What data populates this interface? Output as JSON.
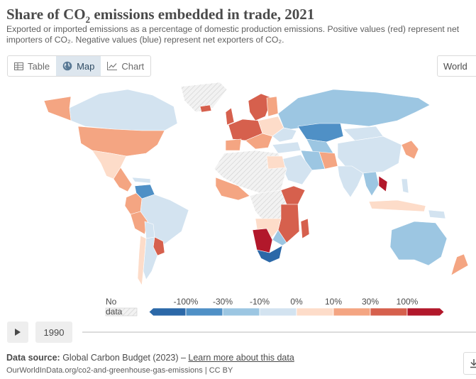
{
  "header": {
    "title_prefix": "Share of CO",
    "title_sub": "2",
    "title_suffix": " emissions embedded in trade, 2021",
    "subtitle": "Exported or imported emissions as a percentage of domestic production emissions. Positive values (red) represent net importers of CO₂. Negative values (blue) represent net exporters of CO₂."
  },
  "tabs": [
    {
      "label": "Table",
      "icon": "table-icon",
      "active": false
    },
    {
      "label": "Map",
      "icon": "globe-icon",
      "active": true
    },
    {
      "label": "Chart",
      "icon": "line-chart-icon",
      "active": false
    }
  ],
  "region_select": {
    "value": "World"
  },
  "map": {
    "colors": {
      "neg_strong": "#2b68a8",
      "neg_mid": "#4f90c6",
      "neg_light": "#9cc6e2",
      "neg_faint": "#d3e3f0",
      "pos_faint": "#fddcc9",
      "pos_light": "#f4a582",
      "pos_mid": "#d6604d",
      "pos_strong": "#b2182b",
      "no_data": "#ececec"
    }
  },
  "legend": {
    "no_data_label": "No data",
    "bins": [
      "-100%",
      "-30%",
      "-10%",
      "0%",
      "10%",
      "30%",
      "100%"
    ]
  },
  "timeline": {
    "year": "1990"
  },
  "footer": {
    "source_label": "Data source:",
    "source_text": " Global Carbon Budget (2023) – ",
    "source_link": "Learn more about this data",
    "credit": "OurWorldInData.org/co2-and-greenhouse-gas-emissions | CC BY"
  }
}
